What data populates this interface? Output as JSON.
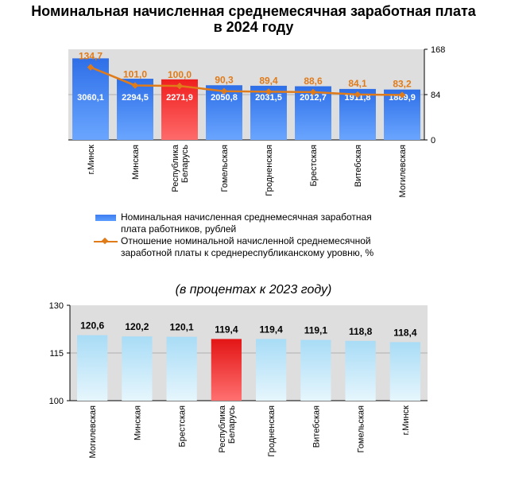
{
  "title_line1": "Номинальная начисленная среднемесячная заработная плата",
  "title_line2": "в 2024 году",
  "chart_data": [
    {
      "type": "bar+line",
      "categories": [
        "г.Минск",
        "Минская",
        "Республика Беларусь",
        "Гомельская",
        "Гродненская",
        "Брестская",
        "Витебская",
        "Могилевская"
      ],
      "series": [
        {
          "name": "Номинальная начисленная среднемесячная заработная плата работников, рублей",
          "values": [
            3060.1,
            2294.5,
            2271.9,
            2050.8,
            2031.5,
            2012.7,
            1911.8,
            1889.9
          ]
        },
        {
          "name": "Отношение номинальной начисленной среднемесячной заработной платы к среднереспубликанскому уровню, %",
          "values": [
            134.7,
            101.0,
            100.0,
            90.3,
            89.4,
            88.6,
            84.1,
            83.2
          ]
        }
      ],
      "value_labels_bar": [
        "3060,1",
        "2294,5",
        "2271,9",
        "2050,8",
        "2031,5",
        "2012,7",
        "1911,8",
        "1889,9"
      ],
      "value_labels_line": [
        "134,7",
        "101,0",
        "100,0",
        "90,3",
        "89,4",
        "88,6",
        "84,1",
        "83,2"
      ],
      "y_right_ticks": [
        "168",
        "84",
        "0"
      ],
      "y_right_range": [
        0,
        168
      ],
      "highlight_category": "Республика Беларусь",
      "colors": {
        "bar": "#4a86f5",
        "bar_highlight": "#ef2b2b",
        "line": "#E07B1A",
        "plot_bg": "#dedede"
      },
      "legend": [
        {
          "line1": "Номинальная начисленная среднемесячная заработная",
          "line2": "плата работников, рублей"
        },
        {
          "line1": "Отношение номинальной начисленной среднемесячной",
          "line2": "заработной платы к среднереспубликанскому уровню, %"
        }
      ]
    },
    {
      "type": "bar",
      "subtitle": "(в процентах к 2023 году)",
      "categories": [
        "Могилевская",
        "Минская",
        "Брестская",
        "Республика Беларусь",
        "Гродненская",
        "Витебская",
        "Гомельская",
        "г.Минск"
      ],
      "values": [
        120.6,
        120.2,
        120.1,
        119.4,
        119.4,
        119.1,
        118.8,
        118.4
      ],
      "value_labels": [
        "120,6",
        "120,2",
        "120,1",
        "119,4",
        "119,4",
        "119,1",
        "118,8",
        "118,4"
      ],
      "y_ticks": [
        "130",
        "115",
        "100"
      ],
      "ylim": [
        100,
        130
      ],
      "highlight_category": "Республика Беларусь",
      "colors": {
        "bar": "#bfe6fb",
        "bar_highlight": "#ef2b2b",
        "plot_bg": "#dedede"
      }
    }
  ]
}
